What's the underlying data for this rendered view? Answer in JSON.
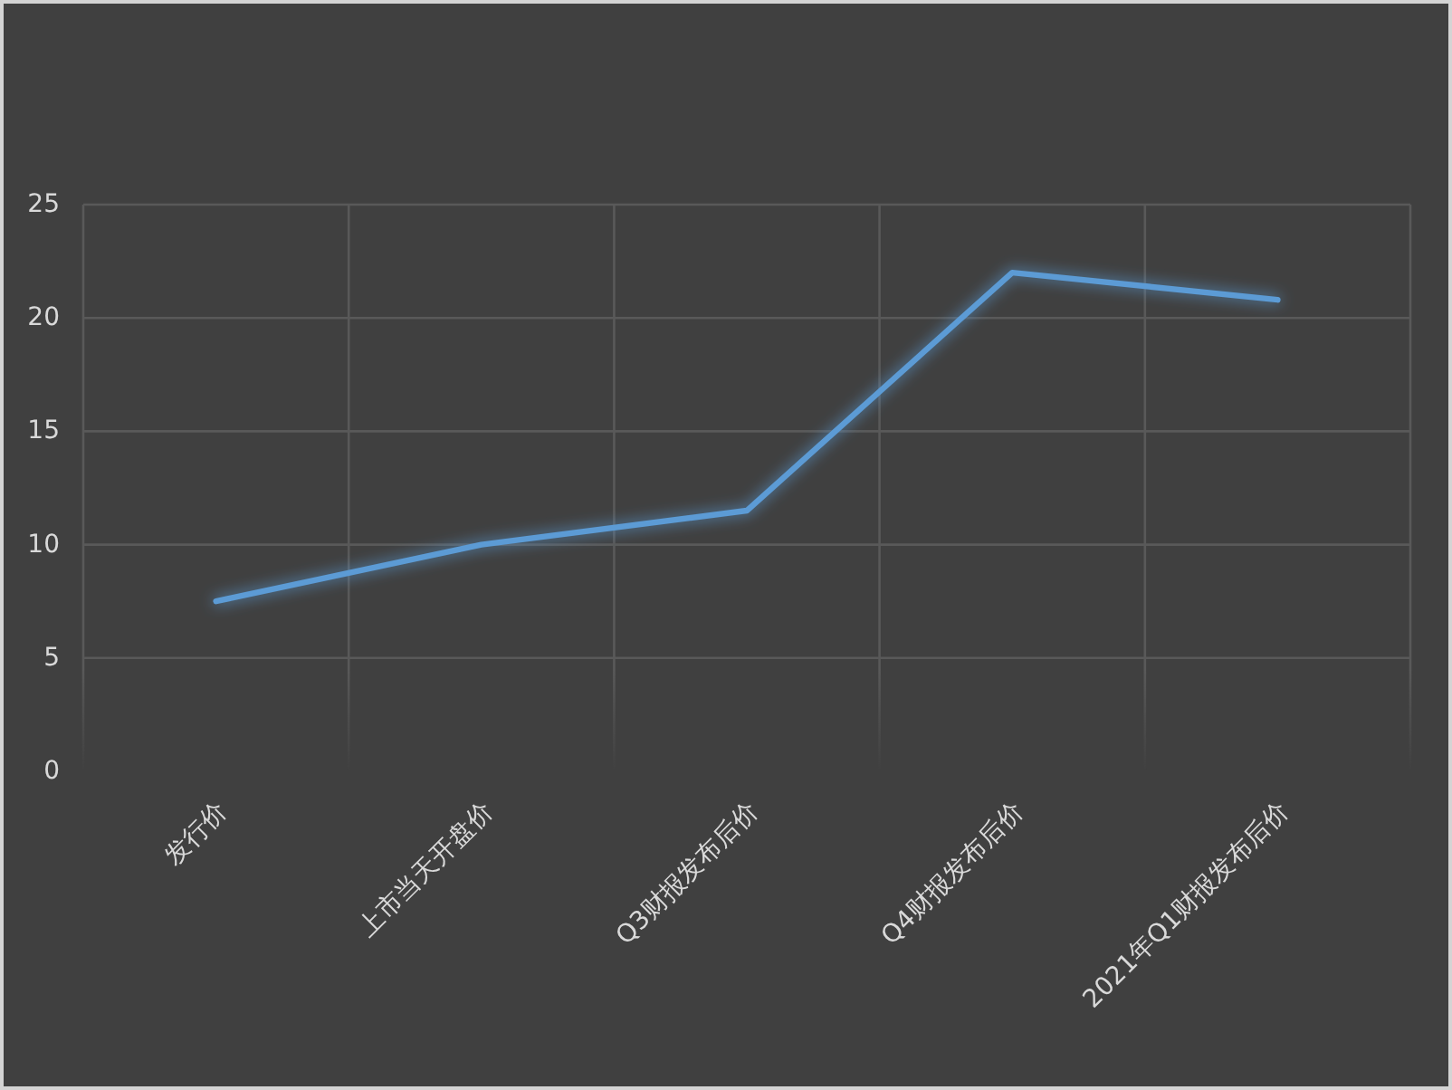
{
  "chart_data": {
    "type": "line",
    "categories": [
      "发行价",
      "上市当天开盘价",
      "Q3财报发布后价",
      "Q4财报发布后价",
      "2021年Q1财报发布后价"
    ],
    "series": [
      {
        "color": "#5b9bd5",
        "values": [
          7.5,
          10,
          11.5,
          22,
          20.8
        ]
      }
    ],
    "ylim": [
      0,
      25
    ],
    "yticks": [
      0,
      5,
      10,
      15,
      20,
      25
    ],
    "grid": true
  }
}
